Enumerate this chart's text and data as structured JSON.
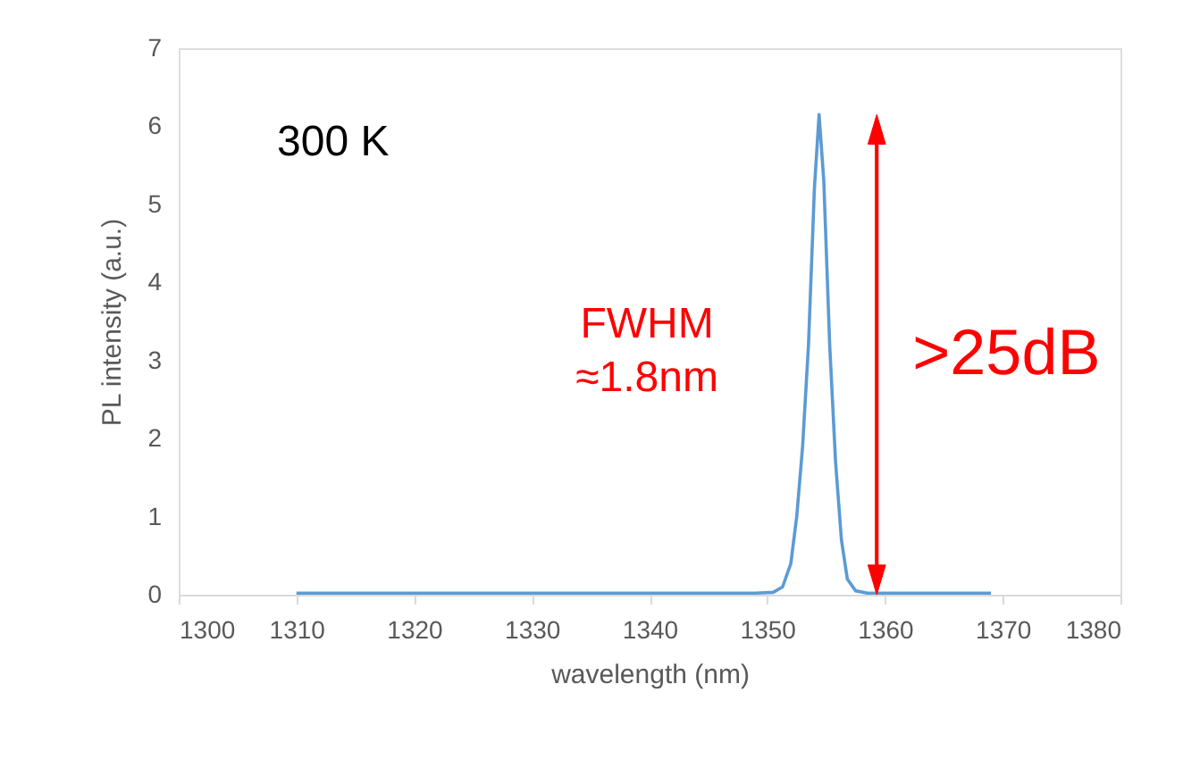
{
  "chart_data": {
    "type": "line",
    "xlabel": "wavelength (nm)",
    "ylabel": "PL intensity (a.u.)",
    "x": [
      1310,
      1320,
      1330,
      1340,
      1349,
      1350.5,
      1351.3,
      1352,
      1352.5,
      1353,
      1353.5,
      1354,
      1354.4,
      1354.8,
      1355.3,
      1355.8,
      1356.3,
      1356.8,
      1357.5,
      1358.5,
      1369
    ],
    "series": [
      {
        "color": "#5b9bd5",
        "values": [
          0.02,
          0.02,
          0.02,
          0.02,
          0.02,
          0.03,
          0.1,
          0.4,
          1.0,
          1.9,
          3.2,
          5.2,
          6.15,
          5.3,
          3.2,
          1.7,
          0.7,
          0.2,
          0.05,
          0.02,
          0.02
        ]
      }
    ],
    "xlim": [
      1300,
      1380
    ],
    "xticks": [
      1300,
      1310,
      1320,
      1330,
      1340,
      1350,
      1360,
      1370,
      1380
    ],
    "ylim": [
      0,
      7
    ],
    "yticks": [
      0,
      1,
      2,
      3,
      4,
      5,
      6,
      7
    ],
    "marker": "none",
    "line_style": "solid",
    "ref_lines": [
      {
        "axis": "x",
        "value": 1359.3,
        "label": ">25dB",
        "color": "#ff0000"
      }
    ],
    "annotations": [
      "300 K",
      "FWHM\n≈1.8nm"
    ]
  }
}
